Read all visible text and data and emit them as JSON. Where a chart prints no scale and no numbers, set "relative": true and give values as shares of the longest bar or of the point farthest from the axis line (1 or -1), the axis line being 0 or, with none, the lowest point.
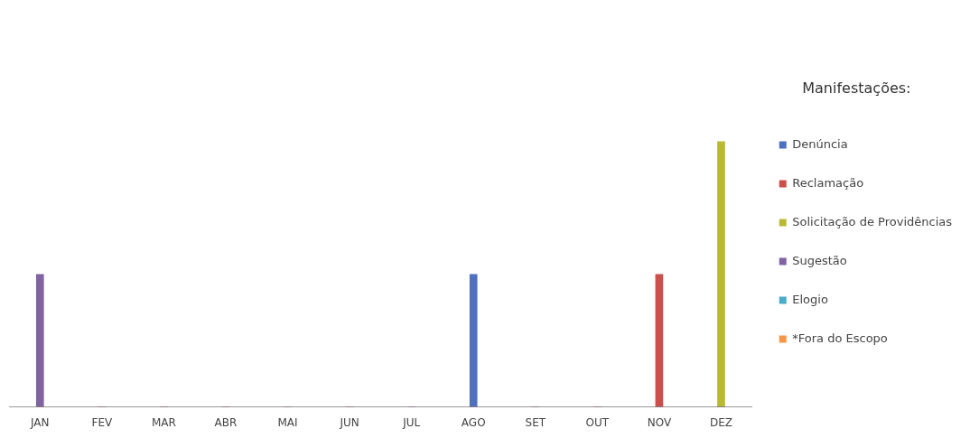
{
  "chart_data": {
    "type": "bar",
    "relative": true,
    "legend_title": "Manifestações:",
    "legend": "right",
    "categories": [
      "JAN",
      "FEV",
      "MAR",
      "ABR",
      "MAI",
      "JUN",
      "JUL",
      "AGO",
      "SET",
      "OUT",
      "NOV",
      "DEZ"
    ],
    "series": [
      {
        "name": "Denúncia",
        "color": "#4f6fbf",
        "values": [
          0,
          0,
          0,
          0,
          0,
          0,
          0,
          0.5,
          0,
          0,
          0,
          0
        ]
      },
      {
        "name": "Reclamação",
        "color": "#c9504d",
        "values": [
          0,
          0,
          0,
          0,
          0,
          0,
          0,
          0,
          0,
          0,
          0.5,
          0
        ]
      },
      {
        "name": "Solicitação de Providências",
        "color": "#b9b933",
        "values": [
          0,
          0,
          0,
          0,
          0,
          0,
          0,
          0,
          0,
          0,
          0,
          1
        ]
      },
      {
        "name": "Sugestão",
        "color": "#8064a2",
        "values": [
          0.5,
          0,
          0,
          0,
          0,
          0,
          0,
          0,
          0,
          0,
          0,
          0
        ]
      },
      {
        "name": "Elogio",
        "color": "#4bacc6",
        "values": [
          0,
          0,
          0,
          0,
          0,
          0,
          0,
          0,
          0,
          0,
          0,
          0
        ]
      },
      {
        "name": "*Fora do Escopo",
        "color": "#f79646",
        "values": [
          0,
          0,
          0,
          0,
          0,
          0,
          0,
          0,
          0,
          0,
          0,
          0
        ]
      }
    ]
  }
}
